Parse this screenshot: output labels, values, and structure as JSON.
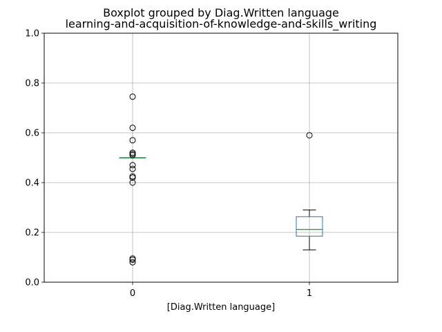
{
  "chart_data": {
    "type": "box",
    "title_line1": "Boxplot grouped by Diag.Written language",
    "title_line2": "learning-and-acquisition-of-knowledge-and-skills_writing",
    "xlabel": "[Diag.Written language]",
    "ylabel": "",
    "ylim": [
      0.0,
      1.0
    ],
    "yticks": [
      "0.0",
      "0.2",
      "0.4",
      "0.6",
      "0.8",
      "1.0"
    ],
    "categories": [
      "0",
      "1"
    ],
    "grid": true,
    "colors": {
      "box": "#1f77b4",
      "median": "#2ca02c",
      "whisker": "#000000",
      "grid": "#b0b0b0"
    },
    "groups": [
      {
        "label": "0",
        "whislo": 0.5,
        "q1": 0.5,
        "med": 0.5,
        "q3": 0.5,
        "whishi": 0.5,
        "fliers": [
          0.745,
          0.62,
          0.57,
          0.52,
          0.515,
          0.51,
          0.47,
          0.455,
          0.425,
          0.42,
          0.4,
          0.095,
          0.09,
          0.08
        ]
      },
      {
        "label": "1",
        "whislo": 0.13,
        "q1": 0.185,
        "med": 0.212,
        "q3": 0.263,
        "whishi": 0.29,
        "fliers": [
          0.59
        ]
      }
    ]
  }
}
